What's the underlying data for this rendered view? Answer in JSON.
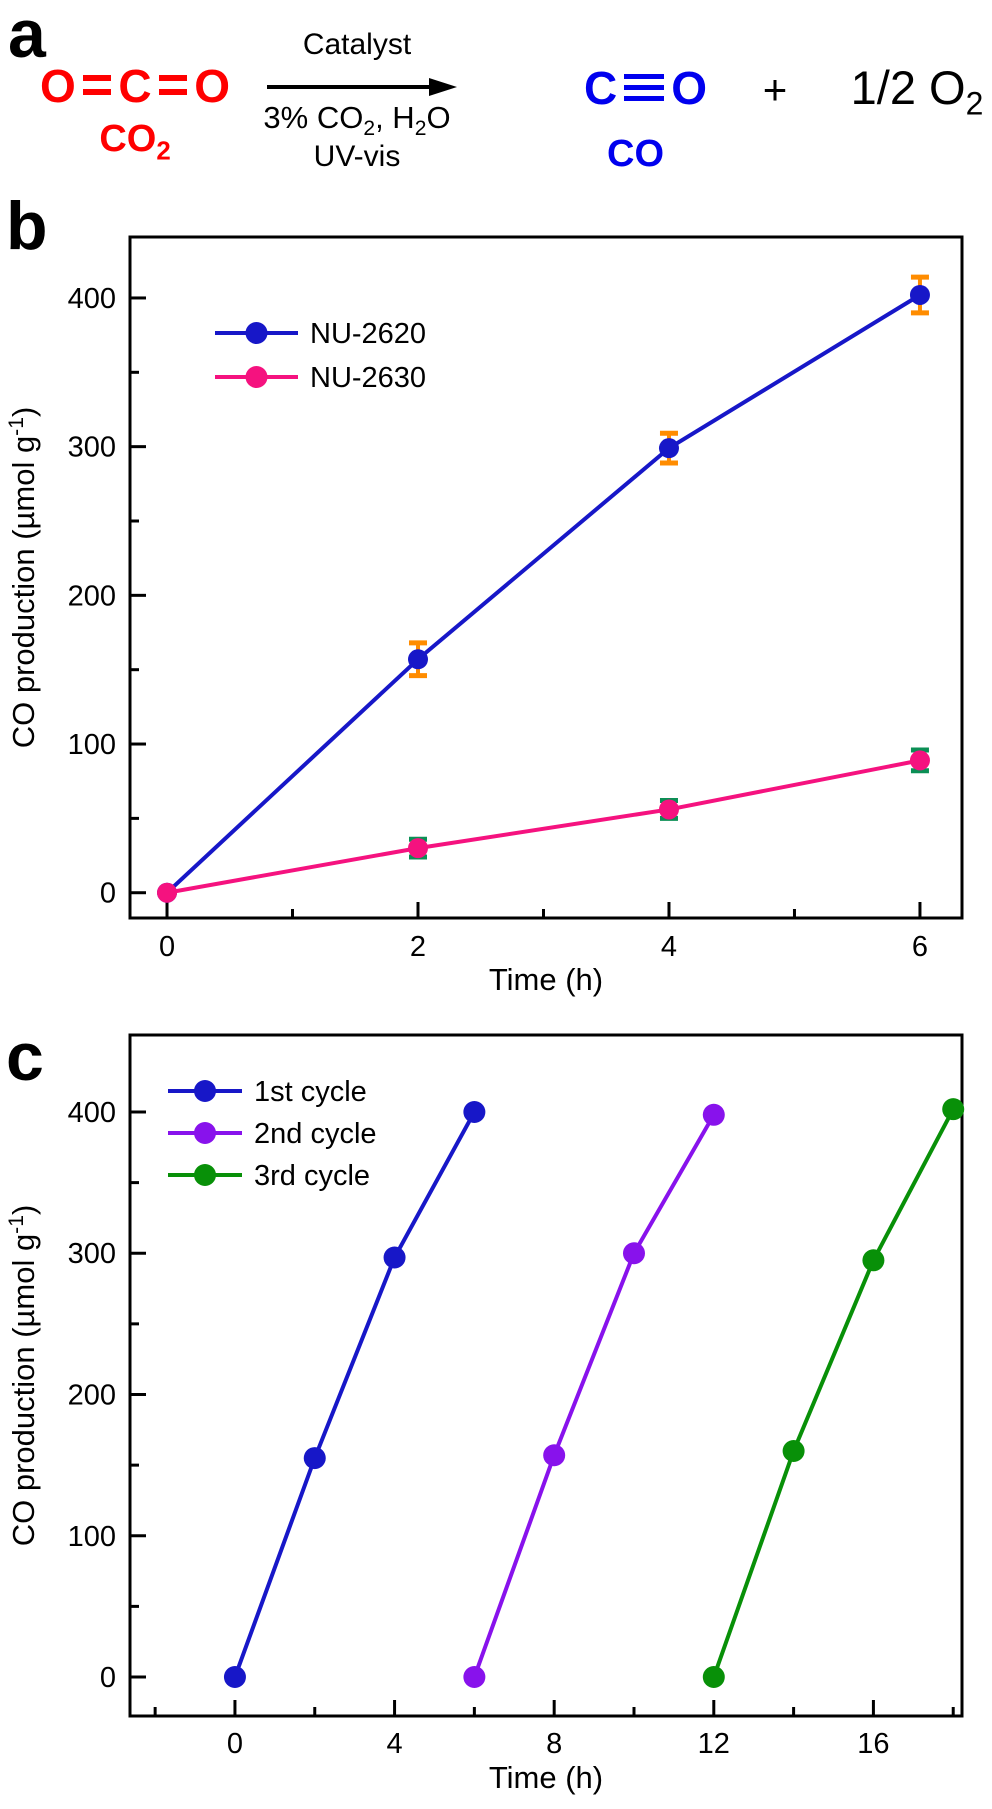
{
  "panel_a": {
    "label": "a",
    "reactant_formula": {
      "atoms": [
        "O",
        "C",
        "O"
      ],
      "bond": "double"
    },
    "reactant_caption": "CO_2_",
    "arrow_top": "Catalyst",
    "arrow_bottom_line1": "3% CO_2_, H_2_O",
    "arrow_bottom_line2": "UV-vis",
    "product_formula": {
      "atoms": [
        "C",
        "O"
      ],
      "bond": "triple"
    },
    "product_caption": "CO",
    "plus_sign": "+",
    "byproduct": "1/2 O_2_",
    "reactant_color": "#ff0000",
    "product_color": "#0000ee"
  },
  "panel_b": {
    "label": "b"
  },
  "panel_c": {
    "label": "c"
  },
  "colors": {
    "axis": "#000000",
    "series_blue": "#1717c8",
    "series_pink": "#f5127f",
    "series_purple": "#8812ec",
    "series_green": "#089008",
    "error_orange": "#ff8c00",
    "error_green": "#0b8f55"
  },
  "chart_data": [
    {
      "type": "line",
      "title": "",
      "xlabel": "Time (h)",
      "ylabel": "CO production (µmol g^-1^)",
      "xlim": [
        -0.295,
        6.335
      ],
      "ylim": [
        -17,
        441
      ],
      "x_major_ticks": [
        0,
        2,
        4,
        6
      ],
      "x_minor_ticks": [
        1,
        3,
        5
      ],
      "y_major_ticks": [
        0,
        100,
        200,
        300,
        400
      ],
      "y_minor_ticks": [
        50,
        150,
        250,
        350
      ],
      "grid": false,
      "legend_position": "top-left",
      "series": [
        {
          "name": "NU-2620",
          "color": "#1717c8",
          "error_color": "#ff8c00",
          "x": [
            0,
            2,
            4,
            6
          ],
          "y": [
            0,
            157,
            299,
            402
          ],
          "yerr": [
            0,
            11,
            10,
            12
          ]
        },
        {
          "name": "NU-2630",
          "color": "#f5127f",
          "error_color": "#0b8f55",
          "x": [
            0,
            2,
            4,
            6
          ],
          "y": [
            0,
            30,
            56,
            89
          ],
          "yerr": [
            0,
            6,
            6,
            7
          ]
        }
      ]
    },
    {
      "type": "line",
      "title": "",
      "xlabel": "Time (h)",
      "ylabel": "CO production (µmol g^-1^)",
      "xlim": [
        -2.63,
        18.22
      ],
      "ylim": [
        -27.6,
        454.5
      ],
      "x_major_ticks": [
        0,
        4,
        8,
        12,
        16
      ],
      "x_minor_ticks": [
        -2,
        2,
        6,
        10,
        14,
        18
      ],
      "y_major_ticks": [
        0,
        100,
        200,
        300,
        400
      ],
      "y_minor_ticks": [
        50,
        150,
        250,
        350
      ],
      "grid": false,
      "legend_position": "top-left",
      "series": [
        {
          "name": "1st cycle",
          "color": "#1717c8",
          "x": [
            0,
            2,
            4,
            6
          ],
          "y": [
            0,
            155,
            297,
            400
          ]
        },
        {
          "name": "2nd cycle",
          "color": "#8812ec",
          "x": [
            6,
            8,
            10,
            12
          ],
          "y": [
            0,
            157,
            300,
            398
          ]
        },
        {
          "name": "3rd cycle",
          "color": "#089008",
          "x": [
            12,
            14,
            16,
            18
          ],
          "y": [
            0,
            160,
            295,
            402
          ]
        }
      ]
    }
  ]
}
